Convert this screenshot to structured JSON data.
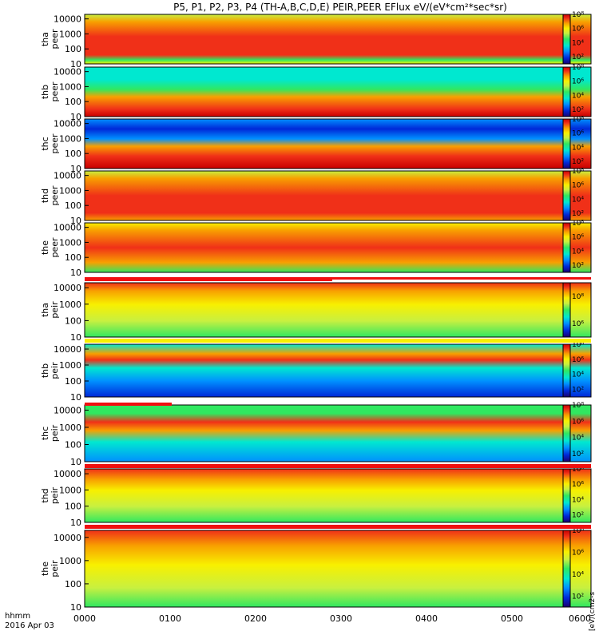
{
  "title": "P5, P1, P2, P3, P4 (TH-A,B,C,D,E) PEIR,PEER EFlux eV/(eV*cm²*sec*sr)",
  "time_axis": {
    "label_top": "hhmm",
    "label_bottom": "2016 Apr 03",
    "ticks": [
      "0000",
      "0100",
      "0200",
      "0300",
      "0400",
      "0500",
      "0600"
    ]
  },
  "colorbar_unit_label": "[eV/(cm2-s",
  "colors": {
    "colormap": [
      "#1a0070",
      "#0028d8",
      "#0090ff",
      "#00e8d0",
      "#30e860",
      "#c8f040",
      "#f8f000",
      "#f8a000",
      "#f03018",
      "#c80000"
    ],
    "status_red": "#f01010",
    "status_yellow": "#f8f000",
    "status_black": "#000000"
  },
  "chart_data": [
    {
      "type": "heatmap",
      "probe": "tha",
      "species": "peer",
      "ylabel": [
        "tha",
        "peer"
      ],
      "yscale": "log",
      "yrange": [
        10,
        20000
      ],
      "y_ticks": [
        "10000",
        "1000",
        "100",
        "10"
      ],
      "colorbar_ticks": [
        "10⁸",
        "10⁶",
        "10⁴",
        "10²"
      ],
      "colorbar_range_log10": [
        1,
        8
      ]
    },
    {
      "type": "heatmap",
      "probe": "thb",
      "species": "peer",
      "ylabel": [
        "thb",
        "peer"
      ],
      "yscale": "log",
      "yrange": [
        10,
        20000
      ],
      "y_ticks": [
        "10000",
        "1000",
        "100",
        "10"
      ],
      "colorbar_ticks": [
        "10⁸",
        "10⁶",
        "10⁴",
        "10²"
      ],
      "colorbar_range_log10": [
        1,
        8
      ]
    },
    {
      "type": "heatmap",
      "probe": "thc",
      "species": "peer",
      "ylabel": [
        "thc",
        "peer"
      ],
      "yscale": "log",
      "yrange": [
        10,
        20000
      ],
      "y_ticks": [
        "10000",
        "1000",
        "100",
        "10"
      ],
      "colorbar_ticks": [
        "10⁸",
        "10⁶",
        "10⁴",
        "10²"
      ],
      "colorbar_range_log10": [
        1,
        8
      ]
    },
    {
      "type": "heatmap",
      "probe": "thd",
      "species": "peer",
      "ylabel": [
        "thd",
        "peer"
      ],
      "yscale": "log",
      "yrange": [
        10,
        20000
      ],
      "y_ticks": [
        "10000",
        "1000",
        "100",
        "10"
      ],
      "colorbar_ticks": [
        "10⁸",
        "10⁶",
        "10⁴",
        "10²"
      ],
      "colorbar_range_log10": [
        1,
        8
      ]
    },
    {
      "type": "heatmap",
      "probe": "the",
      "species": "peer",
      "ylabel": [
        "the",
        "peer"
      ],
      "yscale": "log",
      "yrange": [
        10,
        20000
      ],
      "y_ticks": [
        "10000",
        "1000",
        "100",
        "10"
      ],
      "colorbar_ticks": [
        "10⁸",
        "10⁶",
        "10⁴",
        "10²"
      ],
      "colorbar_range_log10": [
        1,
        8
      ]
    },
    {
      "type": "heatmap",
      "probe": "tha",
      "species": "peir",
      "ylabel": [
        "tha",
        "peir"
      ],
      "yscale": "log",
      "yrange": [
        10,
        20000
      ],
      "y_ticks": [
        "10000",
        "1000",
        "100",
        "10"
      ],
      "colorbar_ticks": [
        "10⁸",
        "10⁶"
      ],
      "colorbar_range_log10": [
        5,
        9
      ]
    },
    {
      "type": "heatmap",
      "probe": "thb",
      "species": "peir",
      "ylabel": [
        "thb",
        "peir"
      ],
      "yscale": "log",
      "yrange": [
        10,
        20000
      ],
      "y_ticks": [
        "10000",
        "1000",
        "100",
        "10"
      ],
      "colorbar_ticks": [
        "10⁸",
        "10⁶",
        "10⁴",
        "10²"
      ],
      "colorbar_range_log10": [
        1,
        8
      ]
    },
    {
      "type": "heatmap",
      "probe": "thc",
      "species": "peir",
      "ylabel": [
        "thc",
        "peir"
      ],
      "yscale": "log",
      "yrange": [
        10,
        20000
      ],
      "y_ticks": [
        "10000",
        "1000",
        "100",
        "10"
      ],
      "colorbar_ticks": [
        "10⁸",
        "10⁶",
        "10⁴",
        "10²"
      ],
      "colorbar_range_log10": [
        1,
        8
      ]
    },
    {
      "type": "heatmap",
      "probe": "thd",
      "species": "peir",
      "ylabel": [
        "thd",
        "peir"
      ],
      "yscale": "log",
      "yrange": [
        10,
        20000
      ],
      "y_ticks": [
        "10000",
        "1000",
        "100",
        "10"
      ],
      "colorbar_ticks": [
        "10⁸",
        "10⁶",
        "10⁴",
        "10²"
      ],
      "colorbar_range_log10": [
        1,
        8
      ]
    },
    {
      "type": "heatmap",
      "probe": "the",
      "species": "peir",
      "ylabel": [
        "the",
        "peir"
      ],
      "yscale": "log",
      "yrange": [
        10,
        20000
      ],
      "y_ticks": [
        "10000",
        "1000",
        "100",
        "10"
      ],
      "colorbar_ticks": [
        "10⁸",
        "10⁶",
        "10⁴",
        "10²"
      ],
      "colorbar_range_log10": [
        1,
        8
      ]
    }
  ]
}
